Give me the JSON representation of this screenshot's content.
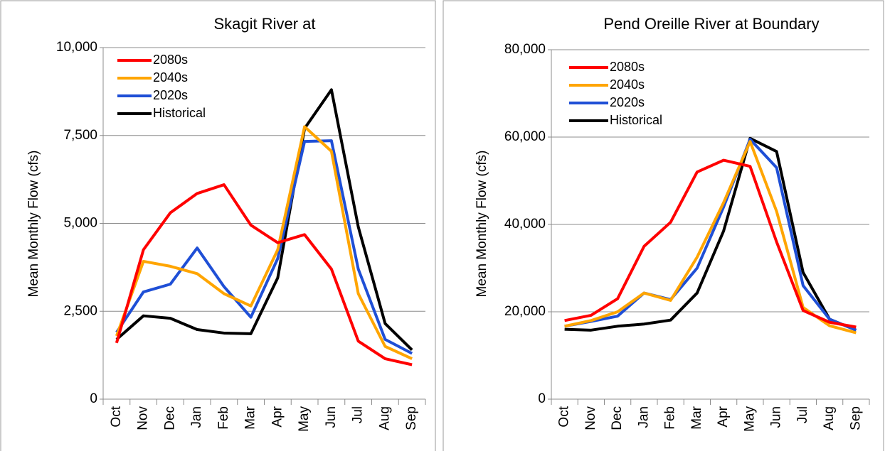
{
  "chart_data": [
    {
      "type": "line",
      "title": "Skagit River at",
      "y_label": "Mean Monthly Flow (cfs)",
      "categories": [
        "Oct",
        "Nov",
        "Dec",
        "Jan",
        "Feb",
        "Mar",
        "Apr",
        "May",
        "Jun",
        "Jul",
        "Aug",
        "Sep"
      ],
      "ylim": [
        0,
        10000
      ],
      "yticks": [
        0,
        {
          "value": 2500,
          "label": "2,500"
        },
        {
          "value": 5000,
          "label": "5,000"
        },
        {
          "value": 7500,
          "label": "7,500"
        },
        {
          "value": 10000,
          "label": "10,000"
        }
      ],
      "grid": true,
      "legend": "upper left",
      "series": [
        {
          "name": "2080s",
          "color": "#ff0000",
          "values": [
            1600,
            4250,
            5300,
            5850,
            6100,
            4950,
            4450,
            4680,
            3700,
            1650,
            1150,
            980
          ]
        },
        {
          "name": "2040s",
          "color": "#ffa500",
          "values": [
            1800,
            3920,
            3780,
            3570,
            3000,
            2650,
            4250,
            7750,
            7050,
            3000,
            1500,
            1150
          ]
        },
        {
          "name": "2020s",
          "color": "#1f4fd6",
          "values": [
            1900,
            3050,
            3270,
            4300,
            3200,
            2330,
            4000,
            7330,
            7350,
            3700,
            1700,
            1300
          ]
        },
        {
          "name": "Historical",
          "color": "#000000",
          "values": [
            1700,
            2370,
            2300,
            1980,
            1880,
            1860,
            3450,
            7700,
            8800,
            4900,
            2150,
            1400
          ]
        }
      ]
    },
    {
      "type": "line",
      "title": "Pend Oreille River at Boundary",
      "y_label": "Mean Monthly Flow (cfs)",
      "categories": [
        "Oct",
        "Nov",
        "Dec",
        "Jan",
        "Feb",
        "Mar",
        "Apr",
        "May",
        "Jun",
        "Jul",
        "Aug",
        "Sep"
      ],
      "ylim": [
        0,
        80000
      ],
      "yticks": [
        0,
        {
          "value": 20000,
          "label": "20,000"
        },
        {
          "value": 40000,
          "label": "40,000"
        },
        {
          "value": 60000,
          "label": "60,000"
        },
        {
          "value": 80000,
          "label": "80,000"
        }
      ],
      "grid": true,
      "legend": "upper left",
      "series": [
        {
          "name": "2080s",
          "color": "#ff0000",
          "values": [
            18000,
            19200,
            23000,
            35000,
            40500,
            52000,
            54700,
            53300,
            36000,
            20300,
            17600,
            16500
          ]
        },
        {
          "name": "2040s",
          "color": "#ffa500",
          "values": [
            16700,
            18000,
            20000,
            24300,
            22600,
            32500,
            45000,
            59000,
            43000,
            21000,
            16800,
            15200
          ]
        },
        {
          "name": "2020s",
          "color": "#1f4fd6",
          "values": [
            16700,
            17800,
            19000,
            24300,
            22800,
            30000,
            44000,
            59500,
            53000,
            26000,
            18300,
            15800
          ]
        },
        {
          "name": "Historical",
          "color": "#000000",
          "values": [
            16000,
            15800,
            16700,
            17200,
            18100,
            24300,
            38500,
            59700,
            56700,
            29000,
            18300,
            15800
          ]
        }
      ]
    }
  ]
}
